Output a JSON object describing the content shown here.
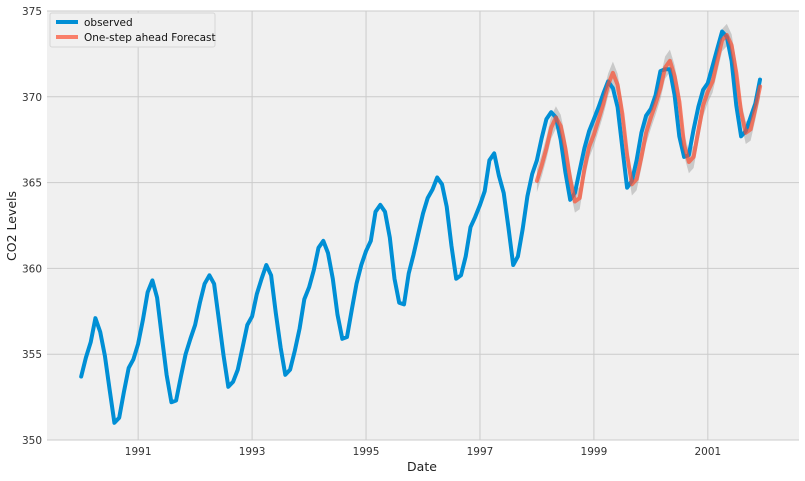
{
  "chart_data": {
    "type": "line",
    "title": "",
    "xlabel": "Date",
    "ylabel": "CO2 Levels",
    "xlim": [
      1989.4,
      2002.6
    ],
    "ylim": [
      350,
      375
    ],
    "x_ticks": [
      1991,
      1993,
      1995,
      1997,
      1999,
      2001
    ],
    "y_ticks": [
      350,
      355,
      360,
      365,
      370,
      375
    ],
    "grid": true,
    "legend": {
      "placement": "top-left",
      "entries": [
        "observed",
        "One-step ahead Forecast"
      ]
    },
    "colors": {
      "observed": "#008fd5",
      "forecast": "#fc4f30",
      "ci_band": "#999999",
      "plot_bg": "#f0f0f0",
      "grid": "#cbcbcb"
    },
    "series": [
      {
        "name": "observed",
        "x_start": 1990.0,
        "x_step": 0.08333,
        "values": [
          353.7,
          354.8,
          355.7,
          357.1,
          356.3,
          354.9,
          352.9,
          351.0,
          351.3,
          352.8,
          354.2,
          354.7,
          355.6,
          357.0,
          358.6,
          359.3,
          358.3,
          356.0,
          353.8,
          352.2,
          352.3,
          353.7,
          355.0,
          355.9,
          356.7,
          358.0,
          359.1,
          359.6,
          359.1,
          357.0,
          354.9,
          353.1,
          353.4,
          354.1,
          355.4,
          356.7,
          357.2,
          358.5,
          359.4,
          360.2,
          359.6,
          357.4,
          355.4,
          353.8,
          354.1,
          355.2,
          356.5,
          358.2,
          358.9,
          359.9,
          361.2,
          361.6,
          360.9,
          359.4,
          357.3,
          355.9,
          356.0,
          357.6,
          359.1,
          360.2,
          361.0,
          361.6,
          363.3,
          363.7,
          363.3,
          361.8,
          359.4,
          358.0,
          357.9,
          359.7,
          360.8,
          362.0,
          363.2,
          364.1,
          364.6,
          365.3,
          364.9,
          363.6,
          361.3,
          359.4,
          359.6,
          360.7,
          362.4,
          363.0,
          363.7,
          364.5,
          366.3,
          366.7,
          365.4,
          364.4,
          362.4,
          360.2,
          360.7,
          362.3,
          364.2,
          365.5,
          366.3,
          367.6,
          368.7,
          369.1,
          368.8,
          367.5,
          365.6,
          364.0,
          364.4,
          365.7,
          367.0,
          368.0,
          368.7,
          369.4,
          370.2,
          370.9,
          370.5,
          369.4,
          367.0,
          364.7,
          365.1,
          366.3,
          367.9,
          368.9,
          369.3,
          370.1,
          371.5,
          371.6,
          371.6,
          370.1,
          367.7,
          366.5,
          366.6,
          368.1,
          369.4,
          370.4,
          370.8,
          371.8,
          372.8,
          373.8,
          373.5,
          372.1,
          369.5,
          367.7,
          368.0,
          368.8,
          369.6,
          371.0
        ]
      },
      {
        "name": "One-step ahead Forecast",
        "x_start": 1998.0,
        "x_step": 0.08333,
        "values": [
          365.1,
          366.0,
          367.0,
          368.2,
          368.8,
          368.3,
          367.0,
          365.2,
          363.9,
          364.1,
          365.8,
          367.1,
          367.8,
          368.7,
          369.6,
          370.7,
          371.4,
          370.7,
          369.0,
          366.6,
          364.9,
          365.2,
          366.5,
          367.9,
          368.8,
          369.6,
          370.5,
          371.7,
          372.1,
          371.2,
          369.7,
          367.2,
          366.2,
          366.5,
          368.0,
          369.5,
          370.3,
          370.9,
          372.1,
          373.3,
          373.6,
          373.0,
          371.4,
          369.1,
          367.9,
          368.1,
          369.3,
          370.6
        ],
        "ci_half_width": 0.65
      }
    ]
  }
}
